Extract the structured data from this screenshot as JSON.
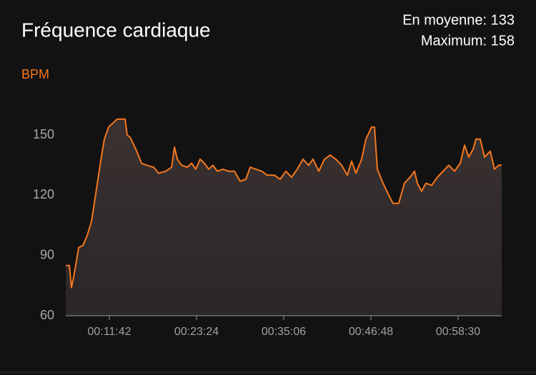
{
  "chart_data": {
    "type": "line",
    "title": "Fréquence cardiaque",
    "stats": [
      "En moyenne: 133",
      "Maximum: 158"
    ],
    "y_label": "BPM",
    "ylim": [
      60,
      165
    ],
    "yticks": [
      60,
      90,
      120,
      150
    ],
    "xlim": [
      351,
      3861
    ],
    "xticks": [
      {
        "value": 702,
        "label": "00:11:42"
      },
      {
        "value": 1404,
        "label": "00:23:24"
      },
      {
        "value": 2106,
        "label": "00:35:06"
      },
      {
        "value": 2808,
        "label": "00:46:48"
      },
      {
        "value": 3510,
        "label": "00:58:30"
      }
    ],
    "grid": false,
    "series": [
      {
        "name": "BPM",
        "color": "#f5781e",
        "x": [
          351,
          380,
          397,
          414,
          431,
          455,
          489,
          524,
          558,
          593,
          627,
          662,
          696,
          731,
          765,
          829,
          846,
          869,
          915,
          961,
          1001,
          1059,
          1099,
          1157,
          1203,
          1226,
          1249,
          1283,
          1329,
          1364,
          1398,
          1433,
          1467,
          1502,
          1536,
          1571,
          1617,
          1663,
          1709,
          1755,
          1801,
          1836,
          1882,
          1928,
          1974,
          2031,
          2077,
          2123,
          2169,
          2215,
          2261,
          2307,
          2342,
          2388,
          2434,
          2480,
          2526,
          2572,
          2618,
          2653,
          2687,
          2733,
          2768,
          2814,
          2837,
          2860,
          2906,
          2952,
          2986,
          3032,
          3078,
          3124,
          3159,
          3182,
          3216,
          3251,
          3297,
          3343,
          3389,
          3435,
          3481,
          3527,
          3562,
          3596,
          3631,
          3654,
          3688,
          3723,
          3769,
          3803,
          3838,
          3861
        ],
        "values": [
          85,
          85,
          74,
          79,
          85,
          94,
          95,
          100,
          107,
          121,
          135,
          148,
          154,
          156,
          158,
          158,
          150,
          149,
          143,
          136,
          135,
          134,
          131,
          132,
          134,
          144,
          138,
          135,
          134,
          136,
          133,
          138,
          136,
          133,
          135,
          132,
          133,
          132,
          132,
          127,
          128,
          134,
          133,
          132,
          130,
          130,
          128,
          132,
          129,
          133,
          138,
          135,
          138,
          132,
          138,
          140,
          138,
          135,
          130,
          137,
          131,
          138,
          148,
          154,
          154,
          133,
          126,
          120,
          116,
          116,
          126,
          129,
          132,
          126,
          122,
          126,
          125,
          129,
          132,
          135,
          132,
          136,
          145,
          139,
          143,
          148,
          148,
          139,
          142,
          133,
          135,
          135
        ]
      }
    ]
  }
}
